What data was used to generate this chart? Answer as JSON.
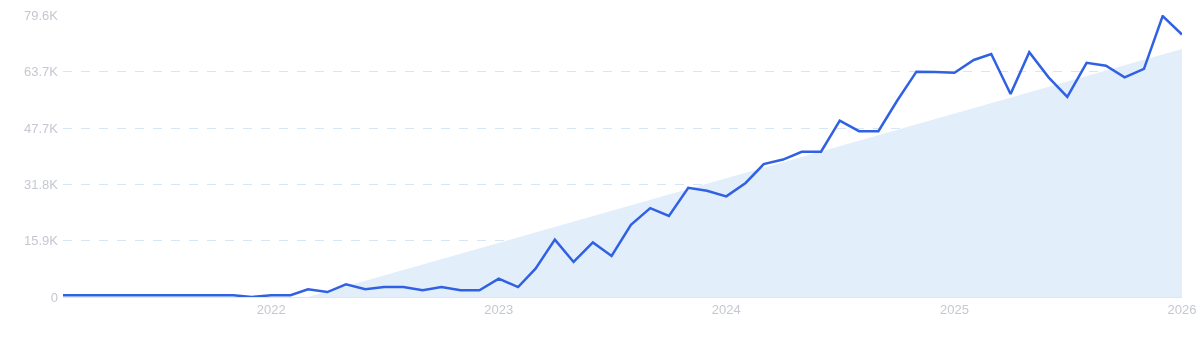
{
  "chart_data": {
    "type": "line",
    "x": [
      "2021-02",
      "2021-03",
      "2021-04",
      "2021-05",
      "2021-06",
      "2021-07",
      "2021-08",
      "2021-09",
      "2021-10",
      "2021-11",
      "2021-12",
      "2022-01",
      "2022-02",
      "2022-03",
      "2022-04",
      "2022-05",
      "2022-06",
      "2022-07",
      "2022-08",
      "2022-09",
      "2022-10",
      "2022-11",
      "2022-12",
      "2023-01",
      "2023-02",
      "2023-03",
      "2023-04",
      "2023-05",
      "2023-06",
      "2023-07",
      "2023-08",
      "2023-09",
      "2023-10",
      "2023-11",
      "2023-12",
      "2024-01",
      "2024-02",
      "2024-03",
      "2024-04",
      "2024-05",
      "2024-06",
      "2024-07",
      "2024-08",
      "2024-09",
      "2024-10",
      "2024-11",
      "2024-12",
      "2025-01",
      "2025-02",
      "2025-03",
      "2025-04",
      "2025-05",
      "2025-06",
      "2025-07",
      "2025-08",
      "2025-09",
      "2025-10",
      "2025-11",
      "2025-12",
      "2026-01"
    ],
    "series": [
      {
        "type": "area",
        "color": "#e3eefb",
        "x": [
          "2022-03",
          "2026-01"
        ],
        "values": [
          0,
          70000
        ]
      },
      {
        "color": "#3061e3",
        "values": [
          500,
          500,
          500,
          500,
          500,
          500,
          500,
          500,
          500,
          500,
          0,
          500,
          500,
          2200,
          1400,
          3600,
          2200,
          2800,
          2800,
          1900,
          2800,
          1900,
          1900,
          5200,
          2800,
          8000,
          16200,
          9900,
          15400,
          11600,
          20400,
          25100,
          22900,
          30800,
          30000,
          28400,
          32200,
          37500,
          38800,
          41000,
          41000,
          49800,
          46800,
          46800,
          55400,
          63600,
          63500,
          63300,
          66900,
          68600,
          57300,
          69100,
          62000,
          56500,
          66100,
          65300,
          62000,
          64400,
          79300,
          74100
        ]
      }
    ],
    "xlim": [
      "2021-02",
      "2026-01"
    ],
    "xticks": [
      {
        "value": "2022",
        "label": "2022"
      },
      {
        "value": "2023",
        "label": "2023"
      },
      {
        "value": "2024",
        "label": "2024"
      },
      {
        "value": "2025",
        "label": "2025"
      },
      {
        "value": "2026",
        "label": "2026"
      }
    ],
    "ylim": [
      0,
      79600
    ],
    "yticks": [
      0,
      {
        "value": 15900,
        "label": "15.9K"
      },
      {
        "value": 31800,
        "label": "31.8K"
      },
      {
        "value": 47700,
        "label": "47.7K"
      },
      {
        "value": 63700,
        "label": "63.7K"
      },
      {
        "value": 79600,
        "label": "79.6K"
      }
    ],
    "grid": "y",
    "marker": "none",
    "line_style": "solid"
  }
}
